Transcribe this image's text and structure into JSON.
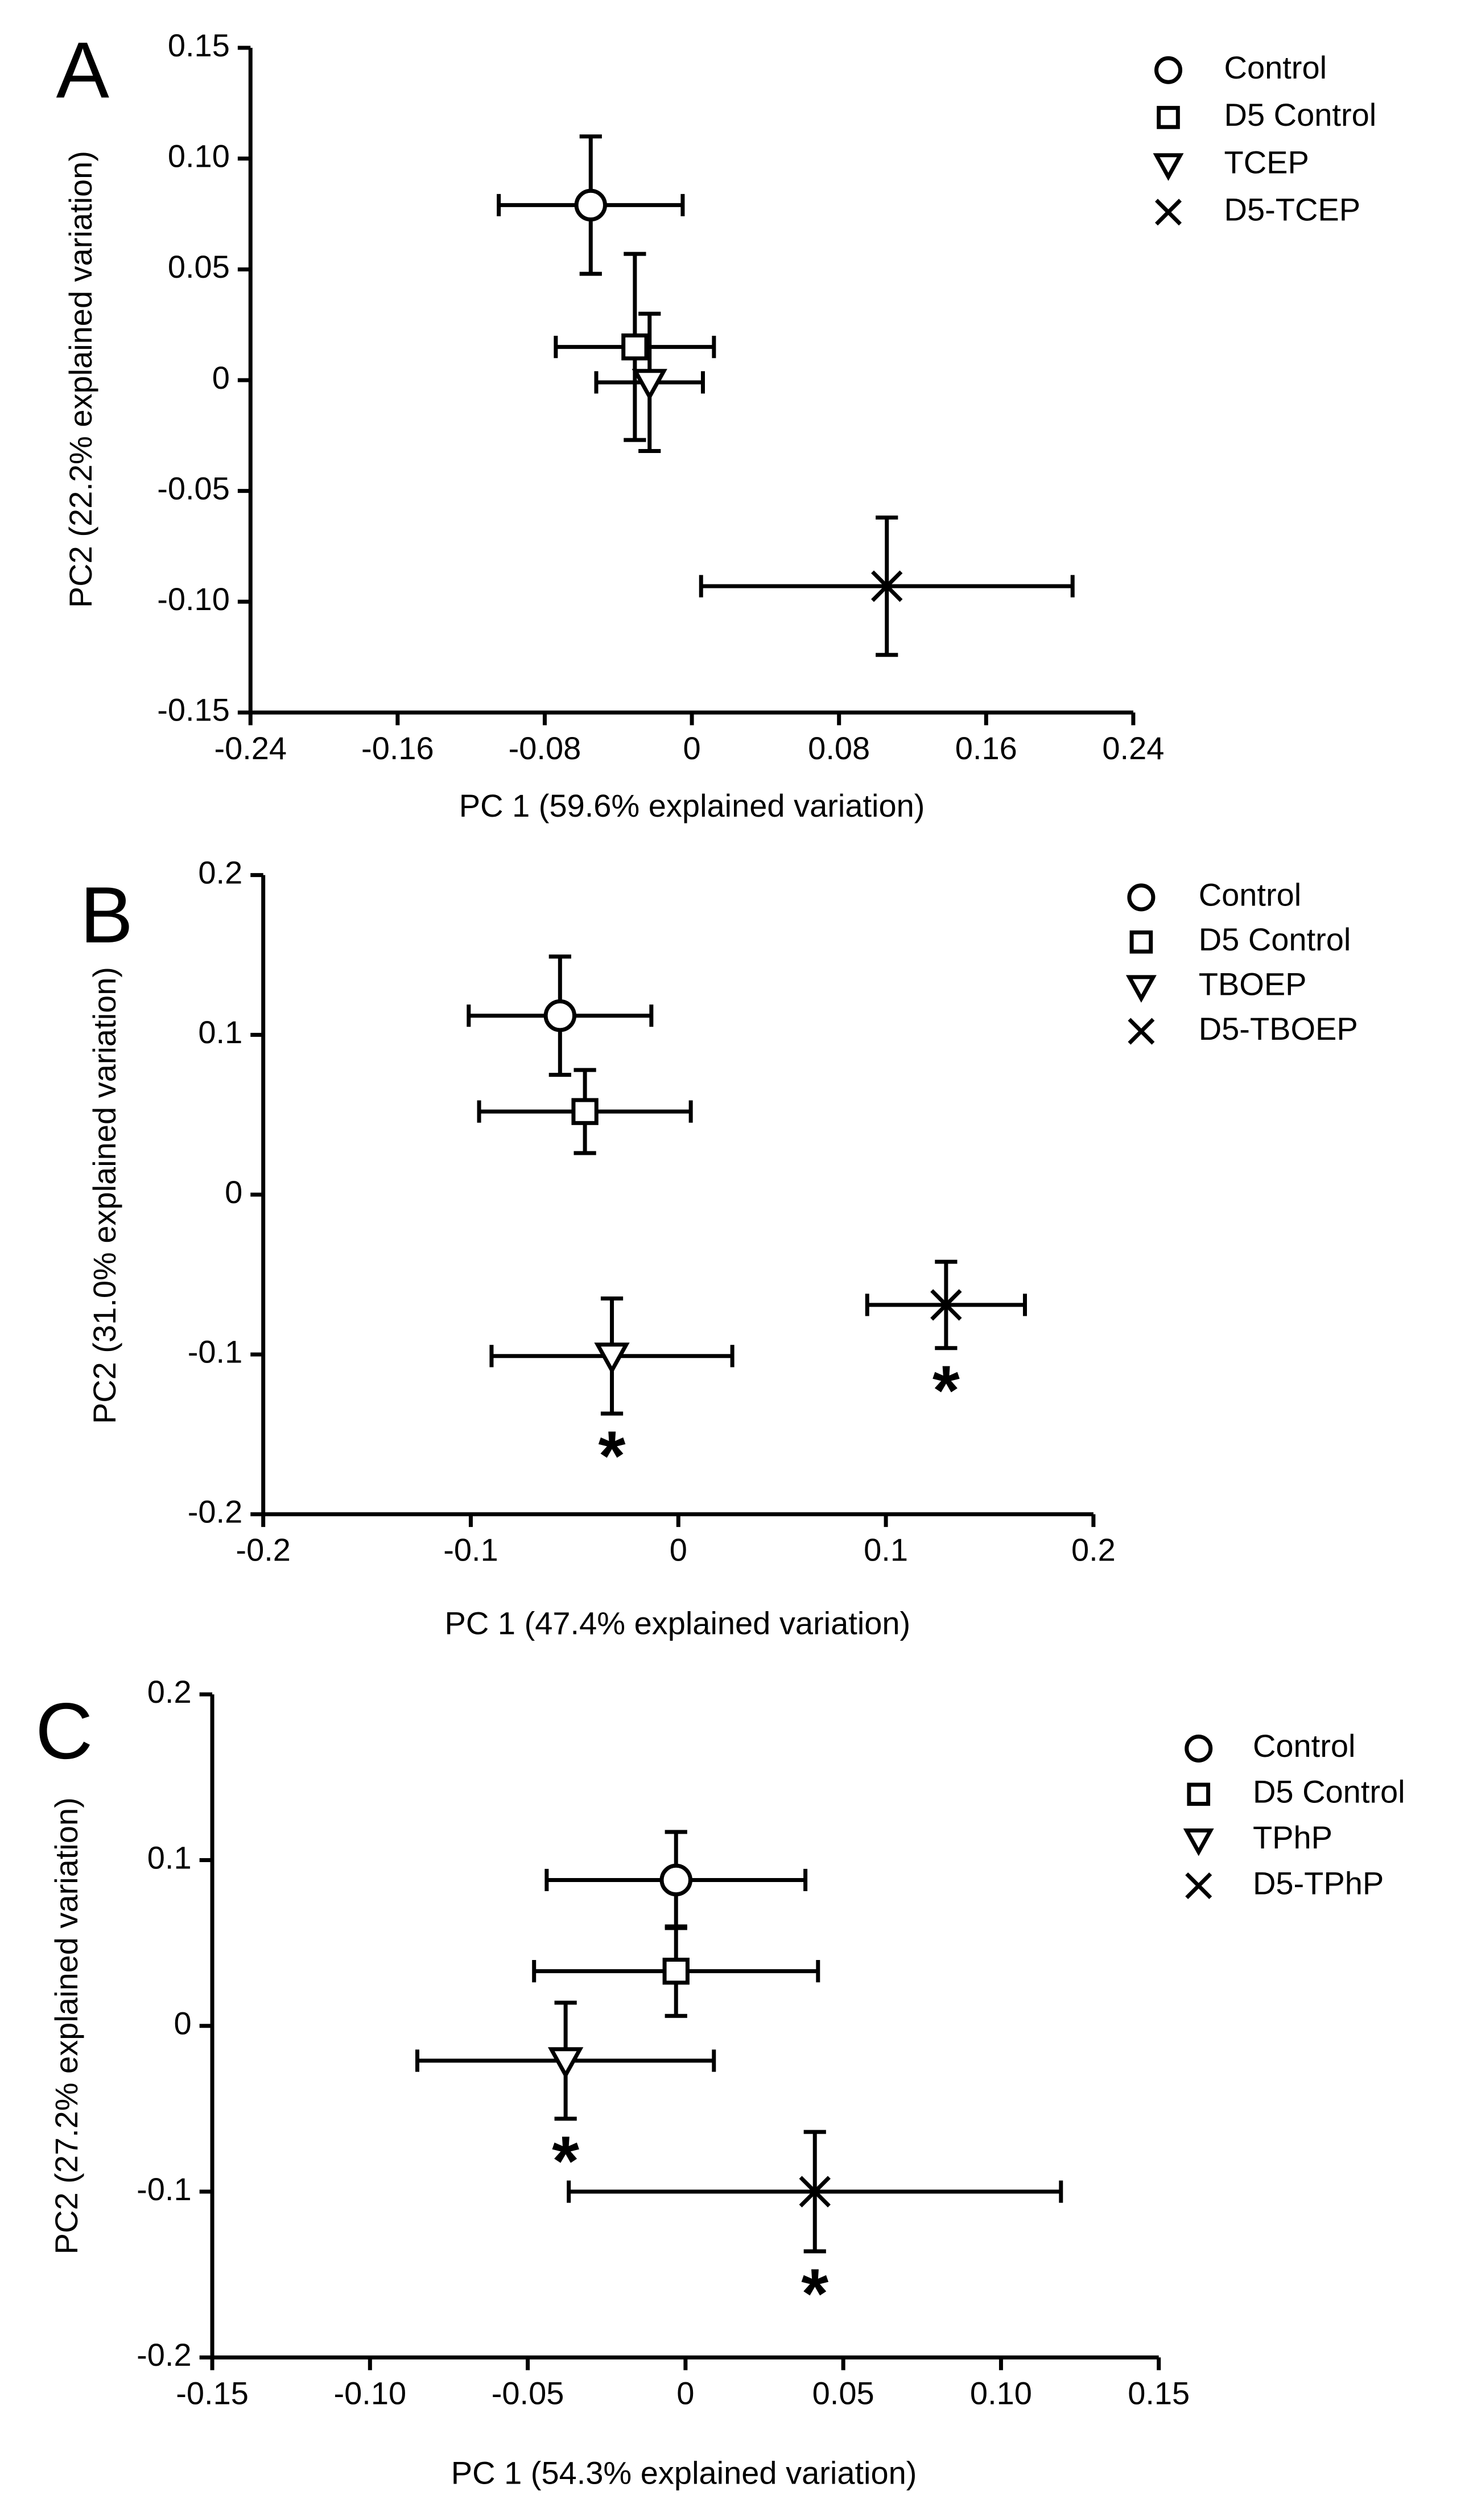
{
  "chart_data": [
    {
      "type": "scatter",
      "panel_label": "A",
      "xlabel": "PC 1 (59.6% explained variation)",
      "ylabel": "PC2 (22.2% explained variation)",
      "xlim": [
        -0.24,
        0.24
      ],
      "xticks": [
        -0.24,
        -0.16,
        -0.08,
        0,
        0.08,
        0.16,
        0.24
      ],
      "ylim": [
        -0.15,
        0.15
      ],
      "yticks": [
        0.15,
        {
          "value": 0.1,
          "label": "0.10"
        },
        0.05,
        0,
        -0.05,
        {
          "value": -0.1,
          "label": "-0.10"
        },
        -0.15
      ],
      "series": [
        {
          "name": "Control",
          "marker": "circle",
          "color": "#000000",
          "x": -0.055,
          "y": 0.079,
          "xerr": 0.05,
          "yerr": 0.031
        },
        {
          "name": "D5 Control",
          "marker": "square",
          "color": "#000000",
          "x": -0.031,
          "y": 0.015,
          "xerr": 0.043,
          "yerr": 0.042
        },
        {
          "name": "TCEP",
          "marker": "triangle-down",
          "color": "#000000",
          "x": -0.023,
          "y": -0.001,
          "xerr": 0.029,
          "yerr": 0.031
        },
        {
          "name": "D5-TCEP",
          "marker": "x",
          "color": "#000000",
          "x": 0.106,
          "y": -0.093,
          "xerr": 0.101,
          "yerr": 0.031
        }
      ]
    },
    {
      "type": "scatter",
      "panel_label": "B",
      "xlabel": "PC 1 (47.4% explained variation)",
      "ylabel": "PC2 (31.0% explained variation)",
      "xlim": [
        -0.2,
        0.2
      ],
      "xticks": [
        -0.2,
        -0.1,
        0,
        0.1,
        0.2
      ],
      "ylim": [
        -0.2,
        0.2
      ],
      "yticks": [
        0.2,
        0.1,
        0,
        -0.1,
        -0.2
      ],
      "series": [
        {
          "name": "Control",
          "marker": "circle",
          "color": "#000000",
          "x": -0.057,
          "y": 0.112,
          "xerr": 0.044,
          "yerr": 0.037
        },
        {
          "name": "D5 Control",
          "marker": "square",
          "color": "#000000",
          "x": -0.045,
          "y": 0.052,
          "xerr": 0.051,
          "yerr": 0.026
        },
        {
          "name": "TBOEP",
          "marker": "triangle-down",
          "color": "#000000",
          "x": -0.032,
          "y": -0.101,
          "xerr": 0.058,
          "yerr": 0.036,
          "annotation": "*"
        },
        {
          "name": "D5-TBOEP",
          "marker": "x",
          "color": "#000000",
          "x": 0.129,
          "y": -0.069,
          "xerr": 0.038,
          "yerr": 0.027,
          "annotation": "*"
        }
      ]
    },
    {
      "type": "scatter",
      "panel_label": "C",
      "xlabel": "PC 1 (54.3% explained variation)",
      "ylabel": "PC2 (27.2% explained variation)",
      "xlim": [
        -0.15,
        0.15
      ],
      "xticks": [
        -0.15,
        {
          "value": -0.1,
          "label": "-0.10"
        },
        -0.05,
        0,
        0.05,
        {
          "value": 0.1,
          "label": "0.10"
        },
        0.15
      ],
      "ylim": [
        -0.2,
        0.2
      ],
      "yticks": [
        0.2,
        0.1,
        0,
        -0.1,
        -0.2
      ],
      "series": [
        {
          "name": "Control",
          "marker": "circle",
          "color": "#000000",
          "x": -0.003,
          "y": 0.088,
          "xerr": 0.041,
          "yerr": 0.029
        },
        {
          "name": "D5 Control",
          "marker": "square",
          "color": "#000000",
          "x": -0.003,
          "y": 0.033,
          "xerr": 0.045,
          "yerr": 0.027
        },
        {
          "name": "TPhP",
          "marker": "triangle-down",
          "color": "#000000",
          "x": -0.038,
          "y": -0.021,
          "xerr": 0.047,
          "yerr": 0.035,
          "annotation": "*"
        },
        {
          "name": "D5-TPhP",
          "marker": "x",
          "color": "#000000",
          "x": 0.041,
          "y": -0.1,
          "xerr": 0.078,
          "yerr": 0.036,
          "annotation": "*"
        }
      ]
    }
  ]
}
